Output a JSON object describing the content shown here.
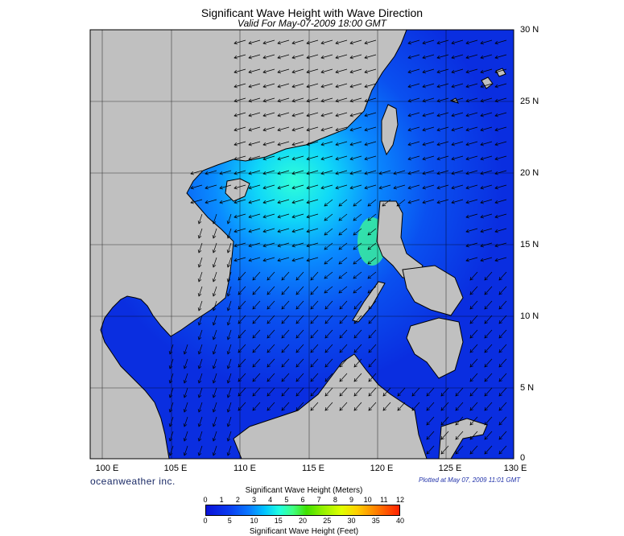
{
  "header": {
    "title": "Significant Wave Height with Wave Direction",
    "subtitle": "Valid For May-07-2009 18:00 GMT"
  },
  "map": {
    "lon_range": [
      98.5,
      130
    ],
    "lat_range": [
      0,
      30
    ],
    "lat_labels": [
      "30 N",
      "25 N",
      "20 N",
      "15 N",
      "10 N",
      "5 N",
      "0"
    ],
    "lon_labels": [
      "100 E",
      "105 E",
      "110 E",
      "115 E",
      "120 E",
      "125 E",
      "130 E"
    ],
    "colors": {
      "land": "#c0c0c0",
      "sea_low": "#0a2ee6",
      "sea_mid": "#0a78ff",
      "sea_high": "#20ffd0",
      "deep_gulf": "#000060"
    }
  },
  "footer": {
    "brand": "oceanweather inc.",
    "plotted": "Plotted at May 07, 2009 11:01 GMT"
  },
  "colorbar": {
    "title_meters": "Significant Wave Height (Meters)",
    "title_feet": "Significant Wave Height (Feet)",
    "meter_ticks": [
      "0",
      "1",
      "2",
      "3",
      "4",
      "5",
      "6",
      "7",
      "8",
      "9",
      "10",
      "11",
      "12"
    ],
    "feet_ticks": [
      "0",
      "5",
      "10",
      "15",
      "20",
      "25",
      "30",
      "35",
      "40"
    ]
  }
}
